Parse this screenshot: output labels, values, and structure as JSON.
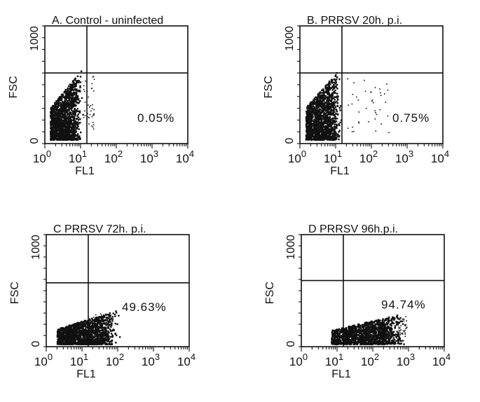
{
  "chart_data": [
    {
      "type": "scatter",
      "panel": "A",
      "title": "A.  Control - uninfected",
      "xlabel": "FL1",
      "ylabel": "FSC",
      "x_scale": "log",
      "xlim": [
        1,
        10000
      ],
      "ylim": [
        0,
        1000
      ],
      "x_ticks": [
        {
          "value": 1,
          "base": "10",
          "exp": "0"
        },
        {
          "value": 10,
          "base": "10",
          "exp": "1"
        },
        {
          "value": 100,
          "base": "10",
          "exp": "2"
        },
        {
          "value": 1000,
          "base": "10",
          "exp": "3"
        },
        {
          "value": 10000,
          "base": "10",
          "exp": "4"
        }
      ],
      "y_ticks": [
        "0",
        "1000"
      ],
      "gates": {
        "x": 15,
        "y": 600
      },
      "annotation": "0.05%",
      "percent_upper_right_quadrant": 0.05,
      "population": {
        "main_cluster": {
          "x_range": [
            1,
            12
          ],
          "y_range": [
            30,
            640
          ]
        },
        "outliers_x_range": [
          12,
          25
        ]
      }
    },
    {
      "type": "scatter",
      "panel": "B",
      "title": "B.  PRRSV 20h. p.i.",
      "xlabel": "FL1",
      "ylabel": "FSC",
      "x_scale": "log",
      "xlim": [
        1,
        10000
      ],
      "ylim": [
        0,
        1000
      ],
      "x_ticks": [
        {
          "value": 1,
          "base": "10",
          "exp": "0"
        },
        {
          "value": 10,
          "base": "10",
          "exp": "1"
        },
        {
          "value": 100,
          "base": "10",
          "exp": "2"
        },
        {
          "value": 1000,
          "base": "10",
          "exp": "3"
        },
        {
          "value": 10000,
          "base": "10",
          "exp": "4"
        }
      ],
      "y_ticks": [
        "0",
        "1000"
      ],
      "gates": {
        "x": 15,
        "y": 600
      },
      "annotation": "0.75%",
      "percent_upper_right_quadrant": 0.75,
      "population": {
        "main_cluster": {
          "x_range": [
            1,
            15
          ],
          "y_range": [
            30,
            650
          ]
        },
        "outliers_x_range": [
          15,
          350
        ]
      }
    },
    {
      "type": "scatter",
      "panel": "C",
      "title": "C  PRRSV 72h. p.i.",
      "xlabel": "FL1",
      "ylabel": "FSC",
      "x_scale": "log",
      "xlim": [
        1,
        10000
      ],
      "ylim": [
        0,
        1000
      ],
      "x_ticks": [
        {
          "value": 1,
          "base": "10",
          "exp": "0"
        },
        {
          "value": 10,
          "base": "10",
          "exp": "1"
        },
        {
          "value": 100,
          "base": "10",
          "exp": "2"
        },
        {
          "value": 1000,
          "base": "10",
          "exp": "3"
        },
        {
          "value": 10000,
          "base": "10",
          "exp": "4"
        }
      ],
      "y_ticks": [
        "0",
        "1000"
      ],
      "gates": {
        "x": 15,
        "y": 570
      },
      "annotation": "49.63%",
      "percent_upper_right_quadrant": 49.63,
      "population": {
        "main_cluster": {
          "x_range": [
            1,
            120
          ],
          "y_range": [
            20,
            330
          ]
        },
        "outliers_x_range": [
          20,
          70
        ]
      }
    },
    {
      "type": "scatter",
      "panel": "D",
      "title": "D  PRRSV 96h.p.i.",
      "xlabel": "FL1",
      "ylabel": "FSC",
      "x_scale": "log",
      "xlim": [
        1,
        10000
      ],
      "ylim": [
        0,
        1000
      ],
      "x_ticks": [
        {
          "value": 1,
          "base": "10",
          "exp": "0"
        },
        {
          "value": 10,
          "base": "10",
          "exp": "1"
        },
        {
          "value": 100,
          "base": "10",
          "exp": "2"
        },
        {
          "value": 1000,
          "base": "10",
          "exp": "3"
        },
        {
          "value": 10000,
          "base": "10",
          "exp": "4"
        }
      ],
      "y_ticks": [
        "0",
        "1000"
      ],
      "gates": {
        "x": 15,
        "y": 590
      },
      "annotation": "94.74%",
      "percent_upper_right_quadrant": 94.74,
      "population": {
        "main_cluster": {
          "x_range": [
            3,
            900
          ],
          "y_range": [
            20,
            300
          ]
        },
        "outliers_x_range": [
          500,
          900
        ]
      }
    }
  ]
}
